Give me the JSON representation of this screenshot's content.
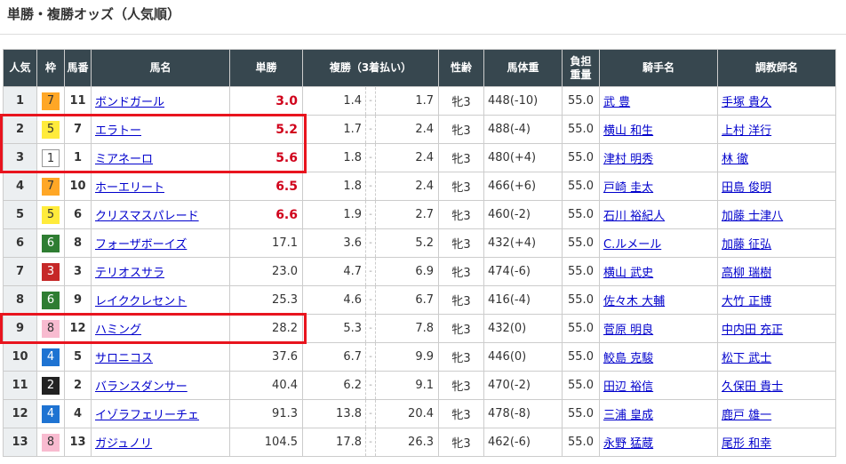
{
  "title": "単勝・複勝オッズ（人気順）",
  "headers": {
    "pop": "人気",
    "waku": "枠",
    "num": "馬番",
    "name": "馬名",
    "win": "単勝",
    "place": "複勝（3着払い）",
    "sexage": "性齢",
    "weight": "馬体重",
    "burden": "負担重量",
    "jockey": "騎手名",
    "trainer": "調教師名"
  },
  "waku_colors": {
    "1": "#ffffff",
    "2": "#222222",
    "3": "#c62828",
    "4": "#1e73d2",
    "5": "#ffeb3b",
    "6": "#2e7d32",
    "7": "#ffa726",
    "8": "#f8bbd0"
  },
  "rows": [
    {
      "pop": "1",
      "waku": "7",
      "num": "11",
      "name": "ボンドガール",
      "win": "3.0",
      "pmin": "1.4",
      "pmax": "1.7",
      "sexage": "牝3",
      "weight": "448(-10)",
      "burden": "55.0",
      "jockey": "武 豊",
      "trainer": "手塚 貴久"
    },
    {
      "pop": "2",
      "waku": "5",
      "num": "7",
      "name": "エラトー",
      "win": "5.2",
      "pmin": "1.7",
      "pmax": "2.4",
      "sexage": "牝3",
      "weight": "488(-4)",
      "burden": "55.0",
      "jockey": "横山 和生",
      "trainer": "上村 洋行"
    },
    {
      "pop": "3",
      "waku": "1",
      "num": "1",
      "name": "ミアネーロ",
      "win": "5.6",
      "pmin": "1.8",
      "pmax": "2.4",
      "sexage": "牝3",
      "weight": "480(+4)",
      "burden": "55.0",
      "jockey": "津村 明秀",
      "trainer": "林 徹"
    },
    {
      "pop": "4",
      "waku": "7",
      "num": "10",
      "name": "ホーエリート",
      "win": "6.5",
      "pmin": "1.8",
      "pmax": "2.4",
      "sexage": "牝3",
      "weight": "466(+6)",
      "burden": "55.0",
      "jockey": "戸崎 圭太",
      "trainer": "田島 俊明"
    },
    {
      "pop": "5",
      "waku": "5",
      "num": "6",
      "name": "クリスマスパレード",
      "win": "6.6",
      "pmin": "1.9",
      "pmax": "2.7",
      "sexage": "牝3",
      "weight": "460(-2)",
      "burden": "55.0",
      "jockey": "石川 裕紀人",
      "trainer": "加藤 士津八"
    },
    {
      "pop": "6",
      "waku": "6",
      "num": "8",
      "name": "フォーザボーイズ",
      "win": "17.1",
      "pmin": "3.6",
      "pmax": "5.2",
      "sexage": "牝3",
      "weight": "432(+4)",
      "burden": "55.0",
      "jockey": "C.ルメール",
      "trainer": "加藤 征弘"
    },
    {
      "pop": "7",
      "waku": "3",
      "num": "3",
      "name": "テリオスサラ",
      "win": "23.0",
      "pmin": "4.7",
      "pmax": "6.9",
      "sexage": "牝3",
      "weight": "474(-6)",
      "burden": "55.0",
      "jockey": "横山 武史",
      "trainer": "高柳 瑞樹"
    },
    {
      "pop": "8",
      "waku": "6",
      "num": "9",
      "name": "レイククレセント",
      "win": "25.3",
      "pmin": "4.6",
      "pmax": "6.7",
      "sexage": "牝3",
      "weight": "416(-4)",
      "burden": "55.0",
      "jockey": "佐々木 大輔",
      "trainer": "大竹 正博"
    },
    {
      "pop": "9",
      "waku": "8",
      "num": "12",
      "name": "ハミング",
      "win": "28.2",
      "pmin": "5.3",
      "pmax": "7.8",
      "sexage": "牝3",
      "weight": "432(0)",
      "burden": "55.0",
      "jockey": "菅原 明良",
      "trainer": "中内田 充正"
    },
    {
      "pop": "10",
      "waku": "4",
      "num": "5",
      "name": "サロニコス",
      "win": "37.6",
      "pmin": "6.7",
      "pmax": "9.9",
      "sexage": "牝3",
      "weight": "446(0)",
      "burden": "55.0",
      "jockey": "鮫島 克駿",
      "trainer": "松下 武士"
    },
    {
      "pop": "11",
      "waku": "2",
      "num": "2",
      "name": "バランスダンサー",
      "win": "40.4",
      "pmin": "6.2",
      "pmax": "9.1",
      "sexage": "牝3",
      "weight": "470(-2)",
      "burden": "55.0",
      "jockey": "田辺 裕信",
      "trainer": "久保田 貴士"
    },
    {
      "pop": "12",
      "waku": "4",
      "num": "4",
      "name": "イゾラフェリーチェ",
      "win": "91.3",
      "pmin": "13.8",
      "pmax": "20.4",
      "sexage": "牝3",
      "weight": "478(-8)",
      "burden": "55.0",
      "jockey": "三浦 皇成",
      "trainer": "鹿戸 雄一"
    },
    {
      "pop": "13",
      "waku": "8",
      "num": "13",
      "name": "ガジュノリ",
      "win": "104.5",
      "pmin": "17.8",
      "pmax": "26.3",
      "sexage": "牝3",
      "weight": "462(-6)",
      "burden": "55.0",
      "jockey": "永野 猛蔵",
      "trainer": "尾形 和幸"
    }
  ],
  "place_sep": "-"
}
